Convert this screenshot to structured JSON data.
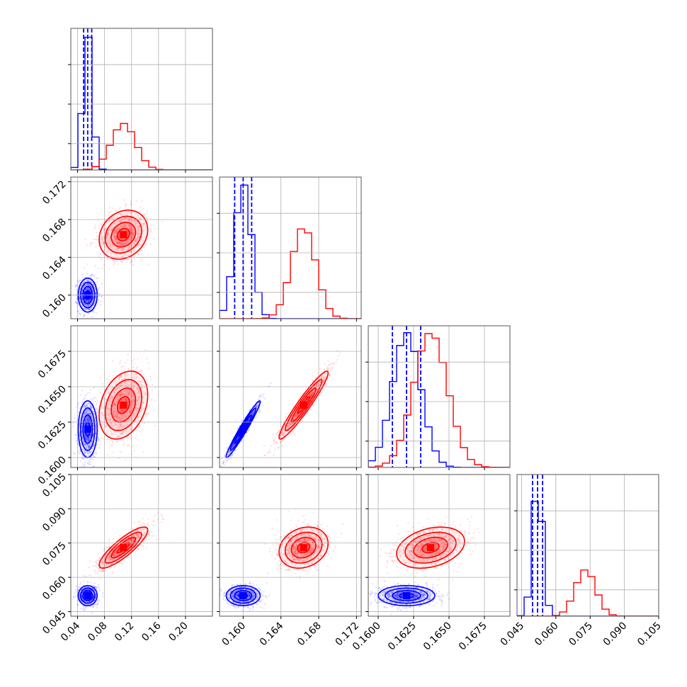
{
  "chart_data": {
    "type": "corner",
    "colors": {
      "blue": "#0000ff",
      "red": "#ff0000",
      "grid": "#b0b0b0"
    },
    "grid": true,
    "parameters": [
      {
        "index": 0,
        "range": [
          0.03,
          0.24
        ],
        "ticks": [
          "0.04",
          "0.08",
          "0.12",
          "0.16",
          "0.20"
        ],
        "tick_values": [
          0.04,
          0.08,
          0.12,
          0.16,
          0.2
        ]
      },
      {
        "index": 1,
        "range": [
          0.1575,
          0.1725
        ],
        "ticks": [
          "0.160",
          "0.164",
          "0.168",
          "0.172"
        ],
        "tick_values": [
          0.16,
          0.164,
          0.168,
          0.172
        ]
      },
      {
        "index": 2,
        "range": [
          0.1593,
          0.1693
        ],
        "ticks": [
          "0.1600",
          "0.1625",
          "0.1650",
          "0.1675"
        ],
        "tick_values": [
          0.16,
          0.1625,
          0.165,
          0.1675
        ]
      },
      {
        "index": 3,
        "range": [
          0.043,
          0.105
        ],
        "ticks": [
          "0.045",
          "0.060",
          "0.075",
          "0.090",
          "0.105"
        ],
        "tick_values": [
          0.045,
          0.06,
          0.075,
          0.09,
          0.105
        ]
      }
    ],
    "series": [
      {
        "color": "blue",
        "means": [
          0.055,
          0.16,
          0.162,
          0.052
        ],
        "sds": [
          0.007,
          0.0009,
          0.001,
          0.0022
        ],
        "corr": [
          [
            1,
            0,
            0,
            0
          ],
          [
            0,
            1,
            0.97,
            0
          ],
          [
            0,
            0.97,
            1,
            0
          ],
          [
            0,
            0,
            0,
            1
          ]
        ],
        "quantiles": [
          [
            0.049,
            0.055,
            0.061
          ],
          [
            0.1591,
            0.16,
            0.1609
          ],
          [
            0.161,
            0.162,
            0.163
          ],
          [
            0.0498,
            0.052,
            0.0542
          ]
        ]
      },
      {
        "color": "red",
        "means": [
          0.108,
          0.1664,
          0.1637,
          0.073
        ],
        "sds": [
          0.018,
          0.0013,
          0.0012,
          0.0045
        ],
        "corr": [
          [
            1,
            0.2,
            0.3,
            0.85
          ],
          [
            0.2,
            1,
            0.95,
            0.2
          ],
          [
            0.3,
            0.95,
            1,
            0.3
          ],
          [
            0.85,
            0.2,
            0.3,
            1
          ]
        ]
      }
    ],
    "histogram_peak_counts": {
      "0": {
        "blue": 2900,
        "red": 1000
      },
      "1": {
        "blue": 1000,
        "red": 680
      },
      "2": {
        "blue": 1000,
        "red": 1000
      },
      "3": {
        "blue": 2900,
        "red": 1000
      }
    }
  }
}
